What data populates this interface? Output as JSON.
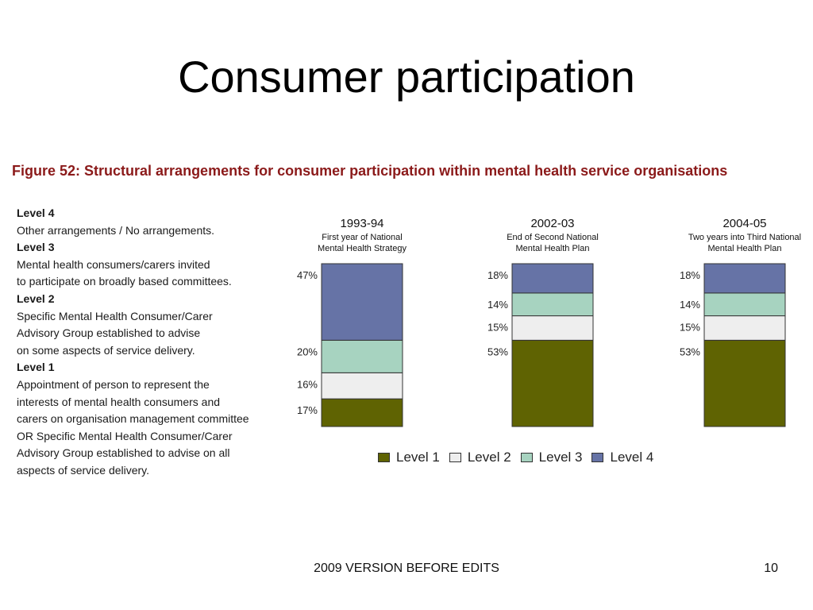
{
  "slide": {
    "title": "Consumer participation",
    "footer": "2009 VERSION BEFORE EDITS",
    "page_number": "10"
  },
  "figure": {
    "title": "Figure 52: Structural arrangements for consumer participation within mental health service organisations"
  },
  "levels_text": [
    {
      "heading": "Level 4",
      "lines": [
        "Other arrangements / No arrangements."
      ]
    },
    {
      "heading": "Level 3",
      "lines": [
        "Mental health consumers/carers invited",
        "to participate on broadly based committees."
      ]
    },
    {
      "heading": "Level 2",
      "lines": [
        "Specific Mental Health Consumer/Carer",
        "Advisory Group established to advise",
        "on some aspects of service delivery."
      ]
    },
    {
      "heading": "Level 1",
      "lines": [
        "Appointment of person to represent the",
        "interests of mental health consumers and",
        "carers on organisation management committee",
        "OR Specific Mental Health Consumer/Carer",
        "Advisory Group established to advise on all",
        "aspects of service delivery."
      ]
    }
  ],
  "colors": {
    "level_1": "#5f6302",
    "level_2": "#eeeeee",
    "level_3": "#a7d3c0",
    "level_4": "#6673a6",
    "figure_title": "#8b1a1a"
  },
  "chart_data": {
    "type": "bar",
    "stacked": true,
    "categories": [
      "1993-94",
      "2002-03",
      "2004-05"
    ],
    "subtitles": [
      [
        "First year of National",
        "Mental Health Strategy"
      ],
      [
        "End of Second National",
        "Mental Health Plan"
      ],
      [
        "Two years into Third National",
        "Mental Health Plan"
      ]
    ],
    "series": [
      {
        "name": "Level 1",
        "values": [
          17,
          53,
          53
        ],
        "color": "#5f6302"
      },
      {
        "name": "Level 2",
        "values": [
          16,
          15,
          15
        ],
        "color": "#eeeeee"
      },
      {
        "name": "Level 3",
        "values": [
          20,
          14,
          14
        ],
        "color": "#a7d3c0"
      },
      {
        "name": "Level 4",
        "values": [
          47,
          18,
          18
        ],
        "color": "#6673a6"
      }
    ],
    "value_labels": [
      [
        "17%",
        "16%",
        "20%",
        "47%"
      ],
      [
        "53%",
        "15%",
        "14%",
        "18%"
      ],
      [
        "53%",
        "15%",
        "14%",
        "18%"
      ]
    ],
    "unit": "%",
    "ylim": [
      0,
      100
    ],
    "legend_position": "bottom"
  }
}
